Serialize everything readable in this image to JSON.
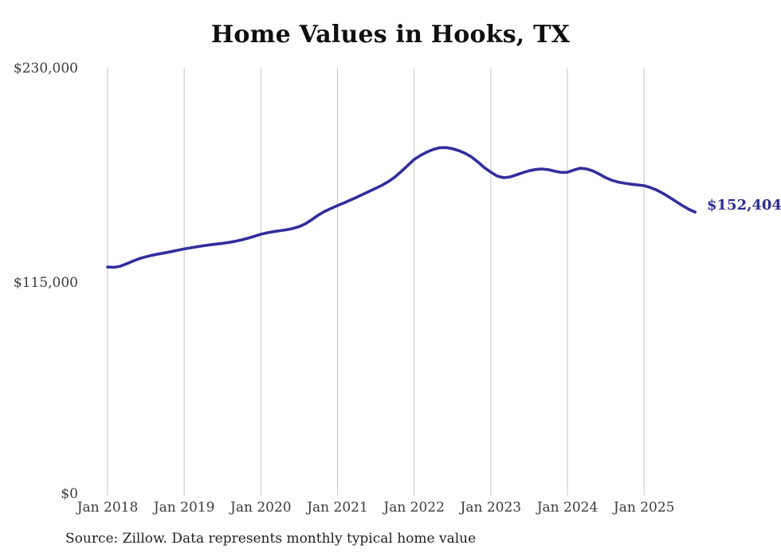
{
  "chart": {
    "title": "Home Values in Hooks, TX",
    "source_note": "Source: Zillow. Data represents monthly typical home value",
    "end_label": "$152,404",
    "colors": {
      "line": "#322e9d",
      "end_label": "#2d2d93",
      "grid": "#c6c6c6",
      "axis_text": "#3c3c3c",
      "title_text": "#0f0f0f"
    },
    "y_axis": {
      "labels": [
        "$230,000",
        "$115,000",
        "$0"
      ]
    },
    "x_axis": {
      "labels": [
        "Jan 2018",
        "Jan 2019",
        "Jan 2020",
        "Jan 2021",
        "Jan 2022",
        "Jan 2023",
        "Jan 2024",
        "Jan 2025"
      ]
    }
  },
  "chart_data": {
    "type": "line",
    "title": "Home Values in Hooks, TX",
    "unit": "USD",
    "x_interval": "monthly",
    "x_start": "2018-01",
    "x_end": "2025-09",
    "ylim": [
      0,
      230000
    ],
    "y_tick_labels": [
      "$0",
      "$115,000",
      "$230,000"
    ],
    "x_tick_labels": [
      "Jan 2018",
      "Jan 2019",
      "Jan 2020",
      "Jan 2021",
      "Jan 2022",
      "Jan 2023",
      "Jan 2024",
      "Jan 2025"
    ],
    "grid": "vertical-only",
    "legend": "none",
    "final_value": 152404,
    "final_value_label": "$152,404",
    "series_name": "Typical home value",
    "values": [
      122900,
      122700,
      123300,
      124700,
      126100,
      127400,
      128400,
      129200,
      129900,
      130500,
      131200,
      131900,
      132600,
      133200,
      133800,
      134300,
      134800,
      135200,
      135600,
      136100,
      136700,
      137500,
      138400,
      139400,
      140500,
      141300,
      141900,
      142400,
      142900,
      143600,
      144600,
      146200,
      148400,
      150800,
      152800,
      154400,
      155900,
      157300,
      158800,
      160400,
      162000,
      163600,
      165200,
      166900,
      168900,
      171300,
      174300,
      177500,
      180700,
      182900,
      184700,
      186100,
      187000,
      187100,
      186500,
      185400,
      184000,
      182000,
      179300,
      176300,
      173900,
      171800,
      170900,
      171300,
      172400,
      173600,
      174600,
      175300,
      175600,
      175200,
      174400,
      173700,
      173800,
      175000,
      176000,
      175600,
      174500,
      172800,
      170900,
      169500,
      168500,
      167900,
      167400,
      167000,
      166600,
      165600,
      164200,
      162400,
      160300,
      158100,
      155900,
      153900,
      152404
    ]
  }
}
